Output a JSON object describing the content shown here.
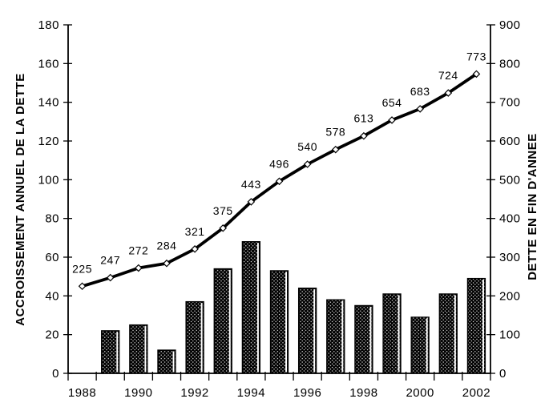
{
  "chart_data": {
    "type": "combo",
    "categories": [
      "1988",
      "1989",
      "1990",
      "1991",
      "1992",
      "1993",
      "1994",
      "1995",
      "1996",
      "1997",
      "1998",
      "1999",
      "2000",
      "2001",
      "2002"
    ],
    "x_axis": {
      "tick_labels": [
        "1988",
        "1990",
        "1992",
        "1994",
        "1996",
        "1998",
        "2000",
        "2002"
      ],
      "labeled_every": 2
    },
    "left_axis": {
      "label": "ACCROISSEMENT ANNUEL DE LA DETTE",
      "min": 0,
      "max": 180,
      "step": 20,
      "tick_labels": [
        "0",
        "20",
        "40",
        "60",
        "80",
        "100",
        "120",
        "140",
        "160",
        "180"
      ]
    },
    "right_axis": {
      "label": "DETTE EN FIN D'ANNEE",
      "min": 0,
      "max": 900,
      "step": 100,
      "tick_labels": [
        "0",
        "100",
        "200",
        "300",
        "400",
        "500",
        "600",
        "700",
        "800",
        "900"
      ]
    },
    "series": [
      {
        "name": "ACCROISSEMENT ANNUEL DE LA DETTE",
        "type": "bar",
        "axis": "left",
        "values": [
          null,
          22,
          25,
          12,
          37,
          54,
          68,
          53,
          44,
          38,
          35,
          41,
          29,
          41,
          49
        ]
      },
      {
        "name": "DETTE EN FIN D'ANNEE",
        "type": "line",
        "axis": "right",
        "values": [
          225,
          247,
          272,
          284,
          321,
          375,
          443,
          496,
          540,
          578,
          613,
          654,
          683,
          724,
          773
        ],
        "data_labels": [
          "225",
          "247",
          "272",
          "284",
          "321",
          "375",
          "443",
          "496",
          "540",
          "578",
          "613",
          "654",
          "683",
          "724",
          "773"
        ]
      }
    ],
    "grid": false,
    "legend": "none",
    "colors": {
      "background": "#ffffff",
      "bar_fill": "#000000",
      "bar_dot": "#ffffff",
      "line": "#000000",
      "marker_fill": "#ffffff",
      "text": "#000000"
    }
  }
}
